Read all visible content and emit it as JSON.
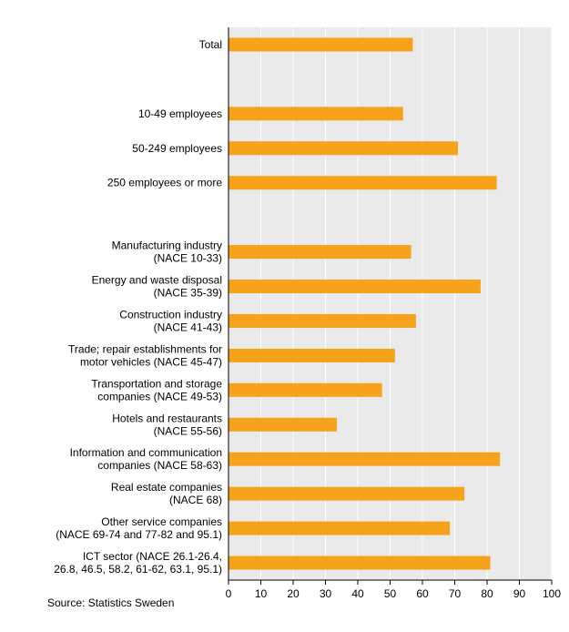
{
  "chart_data": {
    "type": "bar",
    "orientation": "horizontal",
    "categories": [
      [
        "Total"
      ],
      [],
      [
        "10-49 employees"
      ],
      [
        "50-249 employees"
      ],
      [
        "250 employees or more"
      ],
      [],
      [
        "Manufacturing industry",
        "(NACE 10-33)"
      ],
      [
        "Energy and waste disposal",
        "(NACE 35-39)"
      ],
      [
        "Construction industry",
        "(NACE 41-43)"
      ],
      [
        "Trade; repair establishments for",
        "motor vehicles (NACE 45-47)"
      ],
      [
        "Transportation and storage",
        "companies (NACE 49-53)"
      ],
      [
        "Hotels and restaurants",
        "(NACE 55-56)"
      ],
      [
        "Information and communication",
        "companies (NACE 58-63)"
      ],
      [
        "Real estate companies",
        "(NACE 68)"
      ],
      [
        "Other service companies",
        "(NACE 69-74 and 77-82 and 95.1)"
      ],
      [
        "ICT sector (NACE 26.1-26.4,",
        "26.8, 46.5, 58.2, 61-62, 63.1, 95.1)"
      ]
    ],
    "values": [
      57,
      null,
      54,
      71,
      83,
      null,
      56.5,
      78,
      58,
      51.5,
      47.5,
      33.5,
      84,
      73,
      68.5,
      81
    ],
    "xlim": [
      0,
      100
    ],
    "xticks": [
      0,
      10,
      20,
      30,
      40,
      50,
      60,
      70,
      80,
      90,
      100
    ],
    "grid": true,
    "colors": {
      "bar": "#F7A21B",
      "plot_bg": "#EAEAEA",
      "grid": "#FFFFFF",
      "axis": "#000000"
    }
  },
  "source": "Source: Statistics Sweden"
}
